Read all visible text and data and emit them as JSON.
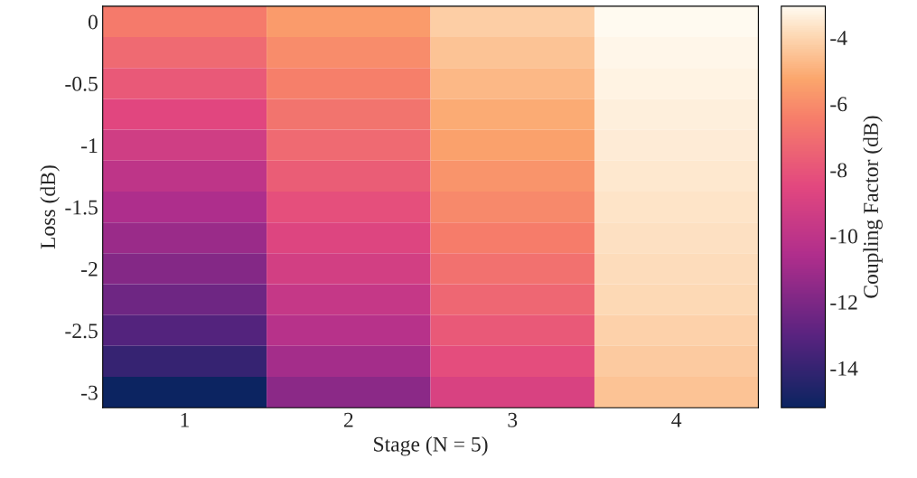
{
  "chart_data": {
    "type": "heatmap",
    "xlabel": "Stage (N = 5)",
    "ylabel": "Loss (dB)",
    "clabel": "Coupling Factor (dB)",
    "categories": [
      "1",
      "2",
      "3",
      "4"
    ],
    "y_categories": [
      "0",
      null,
      "-0.5",
      null,
      "-1",
      null,
      "-1.5",
      null,
      "-2",
      null,
      "-2.5",
      null,
      "-3"
    ],
    "cells": [
      [
        -6.6,
        -5.6,
        -4.2,
        -3.05
      ],
      [
        -7.2,
        -6.0,
        -4.5,
        -3.15
      ],
      [
        -7.8,
        -6.4,
        -4.8,
        -3.25
      ],
      [
        -8.6,
        -6.8,
        -5.1,
        -3.35
      ],
      [
        -9.3,
        -7.2,
        -5.4,
        -3.45
      ],
      [
        -10.0,
        -7.7,
        -5.8,
        -3.55
      ],
      [
        -10.6,
        -8.2,
        -6.1,
        -3.65
      ],
      [
        -11.2,
        -8.7,
        -6.5,
        -3.75
      ],
      [
        -11.8,
        -9.2,
        -6.9,
        -3.85
      ],
      [
        -12.4,
        -9.7,
        -7.3,
        -3.95
      ],
      [
        -13.2,
        -10.3,
        -7.8,
        -4.1
      ],
      [
        -14.0,
        -10.9,
        -8.3,
        -4.3
      ],
      [
        -15.2,
        -11.6,
        -8.9,
        -4.5
      ]
    ],
    "clim": [
      -15.2,
      -3.05
    ],
    "cticks": [
      -14,
      -12,
      -10,
      -8,
      -6,
      -4
    ]
  }
}
